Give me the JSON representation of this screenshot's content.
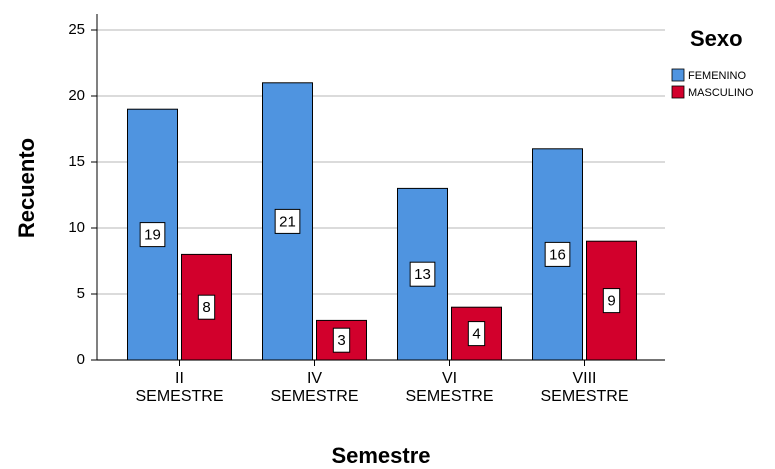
{
  "chart_data": {
    "type": "bar",
    "x_label": "Semestre",
    "y_label": "Recuento",
    "categories": [
      "II SEMESTRE",
      "IV SEMESTRE",
      "VI SEMESTRE",
      "VIII SEMESTRE"
    ],
    "series": [
      {
        "name": "FEMENINO",
        "color": "#4f94e0",
        "values": [
          19,
          21,
          13,
          16
        ]
      },
      {
        "name": "MASCULINO",
        "color": "#d2002c",
        "values": [
          8,
          3,
          4,
          9
        ]
      }
    ],
    "ylim": [
      0,
      25
    ],
    "yticks": [
      0,
      5,
      10,
      15,
      20,
      25
    ],
    "grid": true,
    "legend_title": "Sexo",
    "legend_position": "right"
  }
}
